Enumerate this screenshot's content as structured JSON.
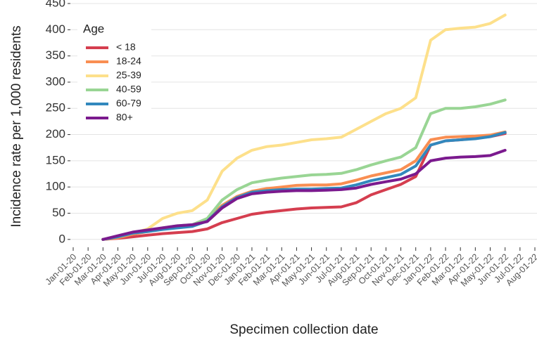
{
  "chart_data": {
    "type": "line",
    "x_label": "Specimen collection date",
    "y_label": "Incidence rate per 1,000 residents",
    "legend_title": "Age",
    "legend": "top-left",
    "grid": true,
    "categories": [
      "Jan-01-20",
      "Feb-01-20",
      "Mar-01-20",
      "Apr-01-20",
      "May-01-20",
      "Jun-01-20",
      "Jul-01-20",
      "Aug-01-20",
      "Sep-01-20",
      "Oct-01-20",
      "Nov-01-20",
      "Dec-01-20",
      "Jan-01-21",
      "Feb-01-21",
      "Mar-01-21",
      "Apr-01-21",
      "May-01-21",
      "Jun-01-21",
      "Jul-01-21",
      "Aug-01-21",
      "Sep-01-21",
      "Oct-01-21",
      "Nov-01-21",
      "Dec-01-21",
      "Jan-01-22",
      "Feb-01-22",
      "Mar-01-22",
      "Apr-01-22",
      "May-01-22",
      "Jun-01-22",
      "Jul-01-22",
      "Aug-01-22"
    ],
    "ylim": [
      -15,
      450
    ],
    "yticks": [
      0,
      50,
      100,
      150,
      200,
      250,
      300,
      350,
      400,
      450
    ],
    "series": [
      {
        "name": "< 18",
        "color": "#d53e4f",
        "values": [
          null,
          null,
          0,
          2,
          5,
          8,
          11,
          13,
          15,
          20,
          32,
          40,
          48,
          52,
          55,
          58,
          60,
          61,
          62,
          70,
          85,
          95,
          105,
          120,
          180,
          188,
          190,
          193,
          196,
          202,
          null,
          null
        ]
      },
      {
        "name": "18-24",
        "color": "#f98e52",
        "values": [
          null,
          null,
          0,
          3,
          10,
          15,
          20,
          24,
          27,
          38,
          65,
          82,
          92,
          97,
          100,
          103,
          104,
          104,
          106,
          113,
          121,
          127,
          133,
          150,
          190,
          195,
          196,
          197,
          199,
          205,
          null,
          null
        ]
      },
      {
        "name": "25-39",
        "color": "#fde08b",
        "values": [
          null,
          null,
          0,
          5,
          12,
          20,
          40,
          50,
          55,
          75,
          130,
          155,
          170,
          177,
          180,
          185,
          190,
          192,
          195,
          210,
          225,
          240,
          250,
          270,
          380,
          400,
          403,
          405,
          412,
          428,
          null,
          null
        ]
      },
      {
        "name": "40-59",
        "color": "#99d594",
        "values": [
          null,
          null,
          0,
          5,
          12,
          17,
          22,
          26,
          28,
          40,
          75,
          95,
          108,
          113,
          117,
          120,
          123,
          124,
          126,
          133,
          142,
          150,
          157,
          175,
          240,
          250,
          250,
          253,
          258,
          266,
          null,
          null
        ]
      },
      {
        "name": "60-79",
        "color": "#3288bd",
        "values": [
          null,
          null,
          0,
          5,
          12,
          15,
          19,
          22,
          25,
          35,
          62,
          80,
          90,
          93,
          95,
          96,
          96,
          97,
          98,
          104,
          112,
          118,
          124,
          140,
          180,
          188,
          190,
          192,
          196,
          204,
          null,
          null
        ]
      },
      {
        "name": "80+",
        "color": "#7b1a8e",
        "values": [
          null,
          null,
          0,
          7,
          14,
          18,
          22,
          26,
          28,
          34,
          60,
          78,
          87,
          90,
          92,
          93,
          93,
          94,
          95,
          98,
          105,
          110,
          115,
          125,
          150,
          155,
          157,
          158,
          160,
          170,
          null,
          null
        ]
      }
    ]
  }
}
